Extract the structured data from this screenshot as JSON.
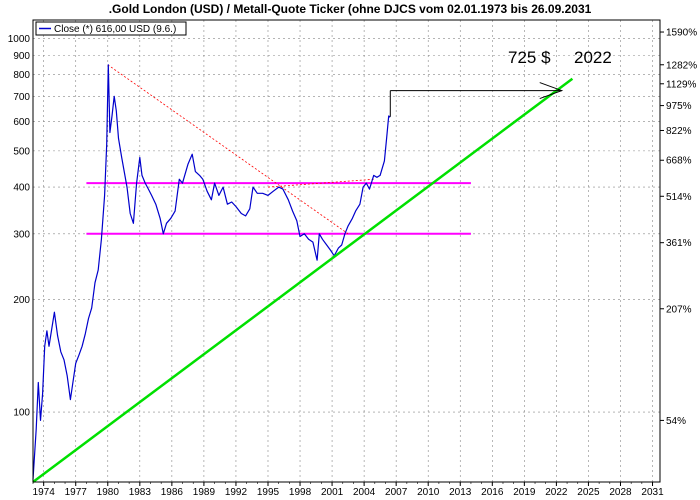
{
  "chart_data": {
    "type": "line",
    "title": ".Gold London (USD) / Metall-Quote Ticker (ohne DJCS vom 02.01.1973 bis 26.09.2031",
    "legend": {
      "label": "Close (*) 616,00 USD (9.6.)",
      "placement": "top-left"
    },
    "x_range": [
      1973.0,
      2031.7
    ],
    "y_scale": "log",
    "y_range": [
      65,
      1120
    ],
    "x_ticks": [
      "1974",
      "1977",
      "1980",
      "1983",
      "1986",
      "1989",
      "1992",
      "1995",
      "1998",
      "2001",
      "2004",
      "2007",
      "2010",
      "2013",
      "2016",
      "2019",
      "2022",
      "2025",
      "2028",
      "2031"
    ],
    "y_left_ticks": [
      {
        "label": "1000",
        "value": 1000
      },
      {
        "label": "900",
        "value": 900
      },
      {
        "label": "800",
        "value": 800
      },
      {
        "label": "700",
        "value": 700
      },
      {
        "label": "600",
        "value": 600
      },
      {
        "label": "500",
        "value": 500
      },
      {
        "label": "400",
        "value": 400
      },
      {
        "label": "300",
        "value": 300
      },
      {
        "label": "200",
        "value": 200
      },
      {
        "label": "100",
        "value": 100
      }
    ],
    "y_right_ticks": [
      {
        "label": "1590%",
        "value": 1040
      },
      {
        "label": "1282%",
        "value": 850
      },
      {
        "label": "1129%",
        "value": 756
      },
      {
        "label": "975%",
        "value": 661
      },
      {
        "label": "822%",
        "value": 567
      },
      {
        "label": "668%",
        "value": 472
      },
      {
        "label": "514%",
        "value": 378
      },
      {
        "label": "361%",
        "value": 284
      },
      {
        "label": "207%",
        "value": 189
      },
      {
        "label": "54%",
        "value": 95
      }
    ],
    "series": [
      {
        "name": "Close (*) 616,00 USD (9.6.)",
        "color": "#0000cc",
        "points": [
          [
            1973.0,
            66
          ],
          [
            1973.3,
            90
          ],
          [
            1973.5,
            120
          ],
          [
            1973.7,
            95
          ],
          [
            1973.9,
            112
          ],
          [
            1974.1,
            150
          ],
          [
            1974.3,
            165
          ],
          [
            1974.5,
            150
          ],
          [
            1974.8,
            170
          ],
          [
            1975.0,
            185
          ],
          [
            1975.3,
            160
          ],
          [
            1975.6,
            145
          ],
          [
            1975.9,
            138
          ],
          [
            1976.2,
            125
          ],
          [
            1976.5,
            108
          ],
          [
            1976.7,
            118
          ],
          [
            1977.0,
            135
          ],
          [
            1977.3,
            142
          ],
          [
            1977.6,
            150
          ],
          [
            1977.9,
            162
          ],
          [
            1978.2,
            178
          ],
          [
            1978.5,
            190
          ],
          [
            1978.8,
            222
          ],
          [
            1979.1,
            240
          ],
          [
            1979.4,
            290
          ],
          [
            1979.7,
            380
          ],
          [
            1979.9,
            520
          ],
          [
            1980.05,
            850
          ],
          [
            1980.2,
            560
          ],
          [
            1980.4,
            620
          ],
          [
            1980.6,
            700
          ],
          [
            1980.8,
            640
          ],
          [
            1981.0,
            540
          ],
          [
            1981.3,
            480
          ],
          [
            1981.6,
            430
          ],
          [
            1981.8,
            400
          ],
          [
            1982.1,
            340
          ],
          [
            1982.4,
            320
          ],
          [
            1982.7,
            410
          ],
          [
            1983.0,
            480
          ],
          [
            1983.2,
            430
          ],
          [
            1983.5,
            410
          ],
          [
            1983.8,
            395
          ],
          [
            1984.1,
            380
          ],
          [
            1984.5,
            360
          ],
          [
            1984.9,
            330
          ],
          [
            1985.2,
            300
          ],
          [
            1985.5,
            320
          ],
          [
            1985.9,
            330
          ],
          [
            1986.3,
            345
          ],
          [
            1986.7,
            420
          ],
          [
            1987.0,
            410
          ],
          [
            1987.5,
            460
          ],
          [
            1987.9,
            490
          ],
          [
            1988.2,
            440
          ],
          [
            1988.6,
            430
          ],
          [
            1988.9,
            420
          ],
          [
            1989.3,
            390
          ],
          [
            1989.7,
            370
          ],
          [
            1990.0,
            410
          ],
          [
            1990.4,
            380
          ],
          [
            1990.8,
            400
          ],
          [
            1991.2,
            360
          ],
          [
            1991.6,
            365
          ],
          [
            1992.0,
            355
          ],
          [
            1992.5,
            340
          ],
          [
            1992.9,
            335
          ],
          [
            1993.3,
            350
          ],
          [
            1993.6,
            400
          ],
          [
            1994.0,
            385
          ],
          [
            1994.5,
            385
          ],
          [
            1995.0,
            380
          ],
          [
            1995.5,
            390
          ],
          [
            1996.0,
            400
          ],
          [
            1996.4,
            395
          ],
          [
            1996.9,
            370
          ],
          [
            1997.3,
            345
          ],
          [
            1997.7,
            325
          ],
          [
            1998.0,
            295
          ],
          [
            1998.4,
            300
          ],
          [
            1998.8,
            290
          ],
          [
            1999.2,
            285
          ],
          [
            1999.6,
            255
          ],
          [
            1999.8,
            300
          ],
          [
            2000.1,
            290
          ],
          [
            2000.5,
            280
          ],
          [
            2000.9,
            270
          ],
          [
            2001.2,
            262
          ],
          [
            2001.6,
            275
          ],
          [
            2001.9,
            280
          ],
          [
            2002.2,
            300
          ],
          [
            2002.5,
            315
          ],
          [
            2002.9,
            330
          ],
          [
            2003.2,
            345
          ],
          [
            2003.6,
            360
          ],
          [
            2003.9,
            400
          ],
          [
            2004.2,
            410
          ],
          [
            2004.5,
            395
          ],
          [
            2004.9,
            430
          ],
          [
            2005.2,
            425
          ],
          [
            2005.5,
            430
          ],
          [
            2005.9,
            470
          ],
          [
            2006.1,
            540
          ],
          [
            2006.3,
            620
          ],
          [
            2006.45,
            616
          ]
        ]
      },
      {
        "name": "",
        "color": "#00e000",
        "points": [
          [
            1973.0,
            65
          ],
          [
            2023.5,
            780
          ]
        ]
      }
    ],
    "annotations": {
      "text_price": "725 $",
      "text_year": "2022",
      "support_lines": [
        {
          "color": "#ff00ff",
          "y": 410,
          "x_from": 1978.0,
          "x_to": 2014.0
        },
        {
          "color": "#ff00ff",
          "y": 300,
          "x_from": 1978.0,
          "x_to": 2014.0
        }
      ],
      "dotted_trend_lines": [
        {
          "color": "#ff0000",
          "from": [
            1980.0,
            850
          ],
          "to": [
            2002.5,
            300
          ]
        },
        {
          "color": "#ff0000",
          "from": [
            1995.0,
            400
          ],
          "to": [
            2005.0,
            420
          ]
        }
      ],
      "arrow": {
        "color": "#000000",
        "from": [
          2006.45,
          720
        ],
        "corner": [
          2006.45,
          725
        ],
        "to": [
          2022.5,
          725
        ]
      }
    },
    "grid": true
  }
}
